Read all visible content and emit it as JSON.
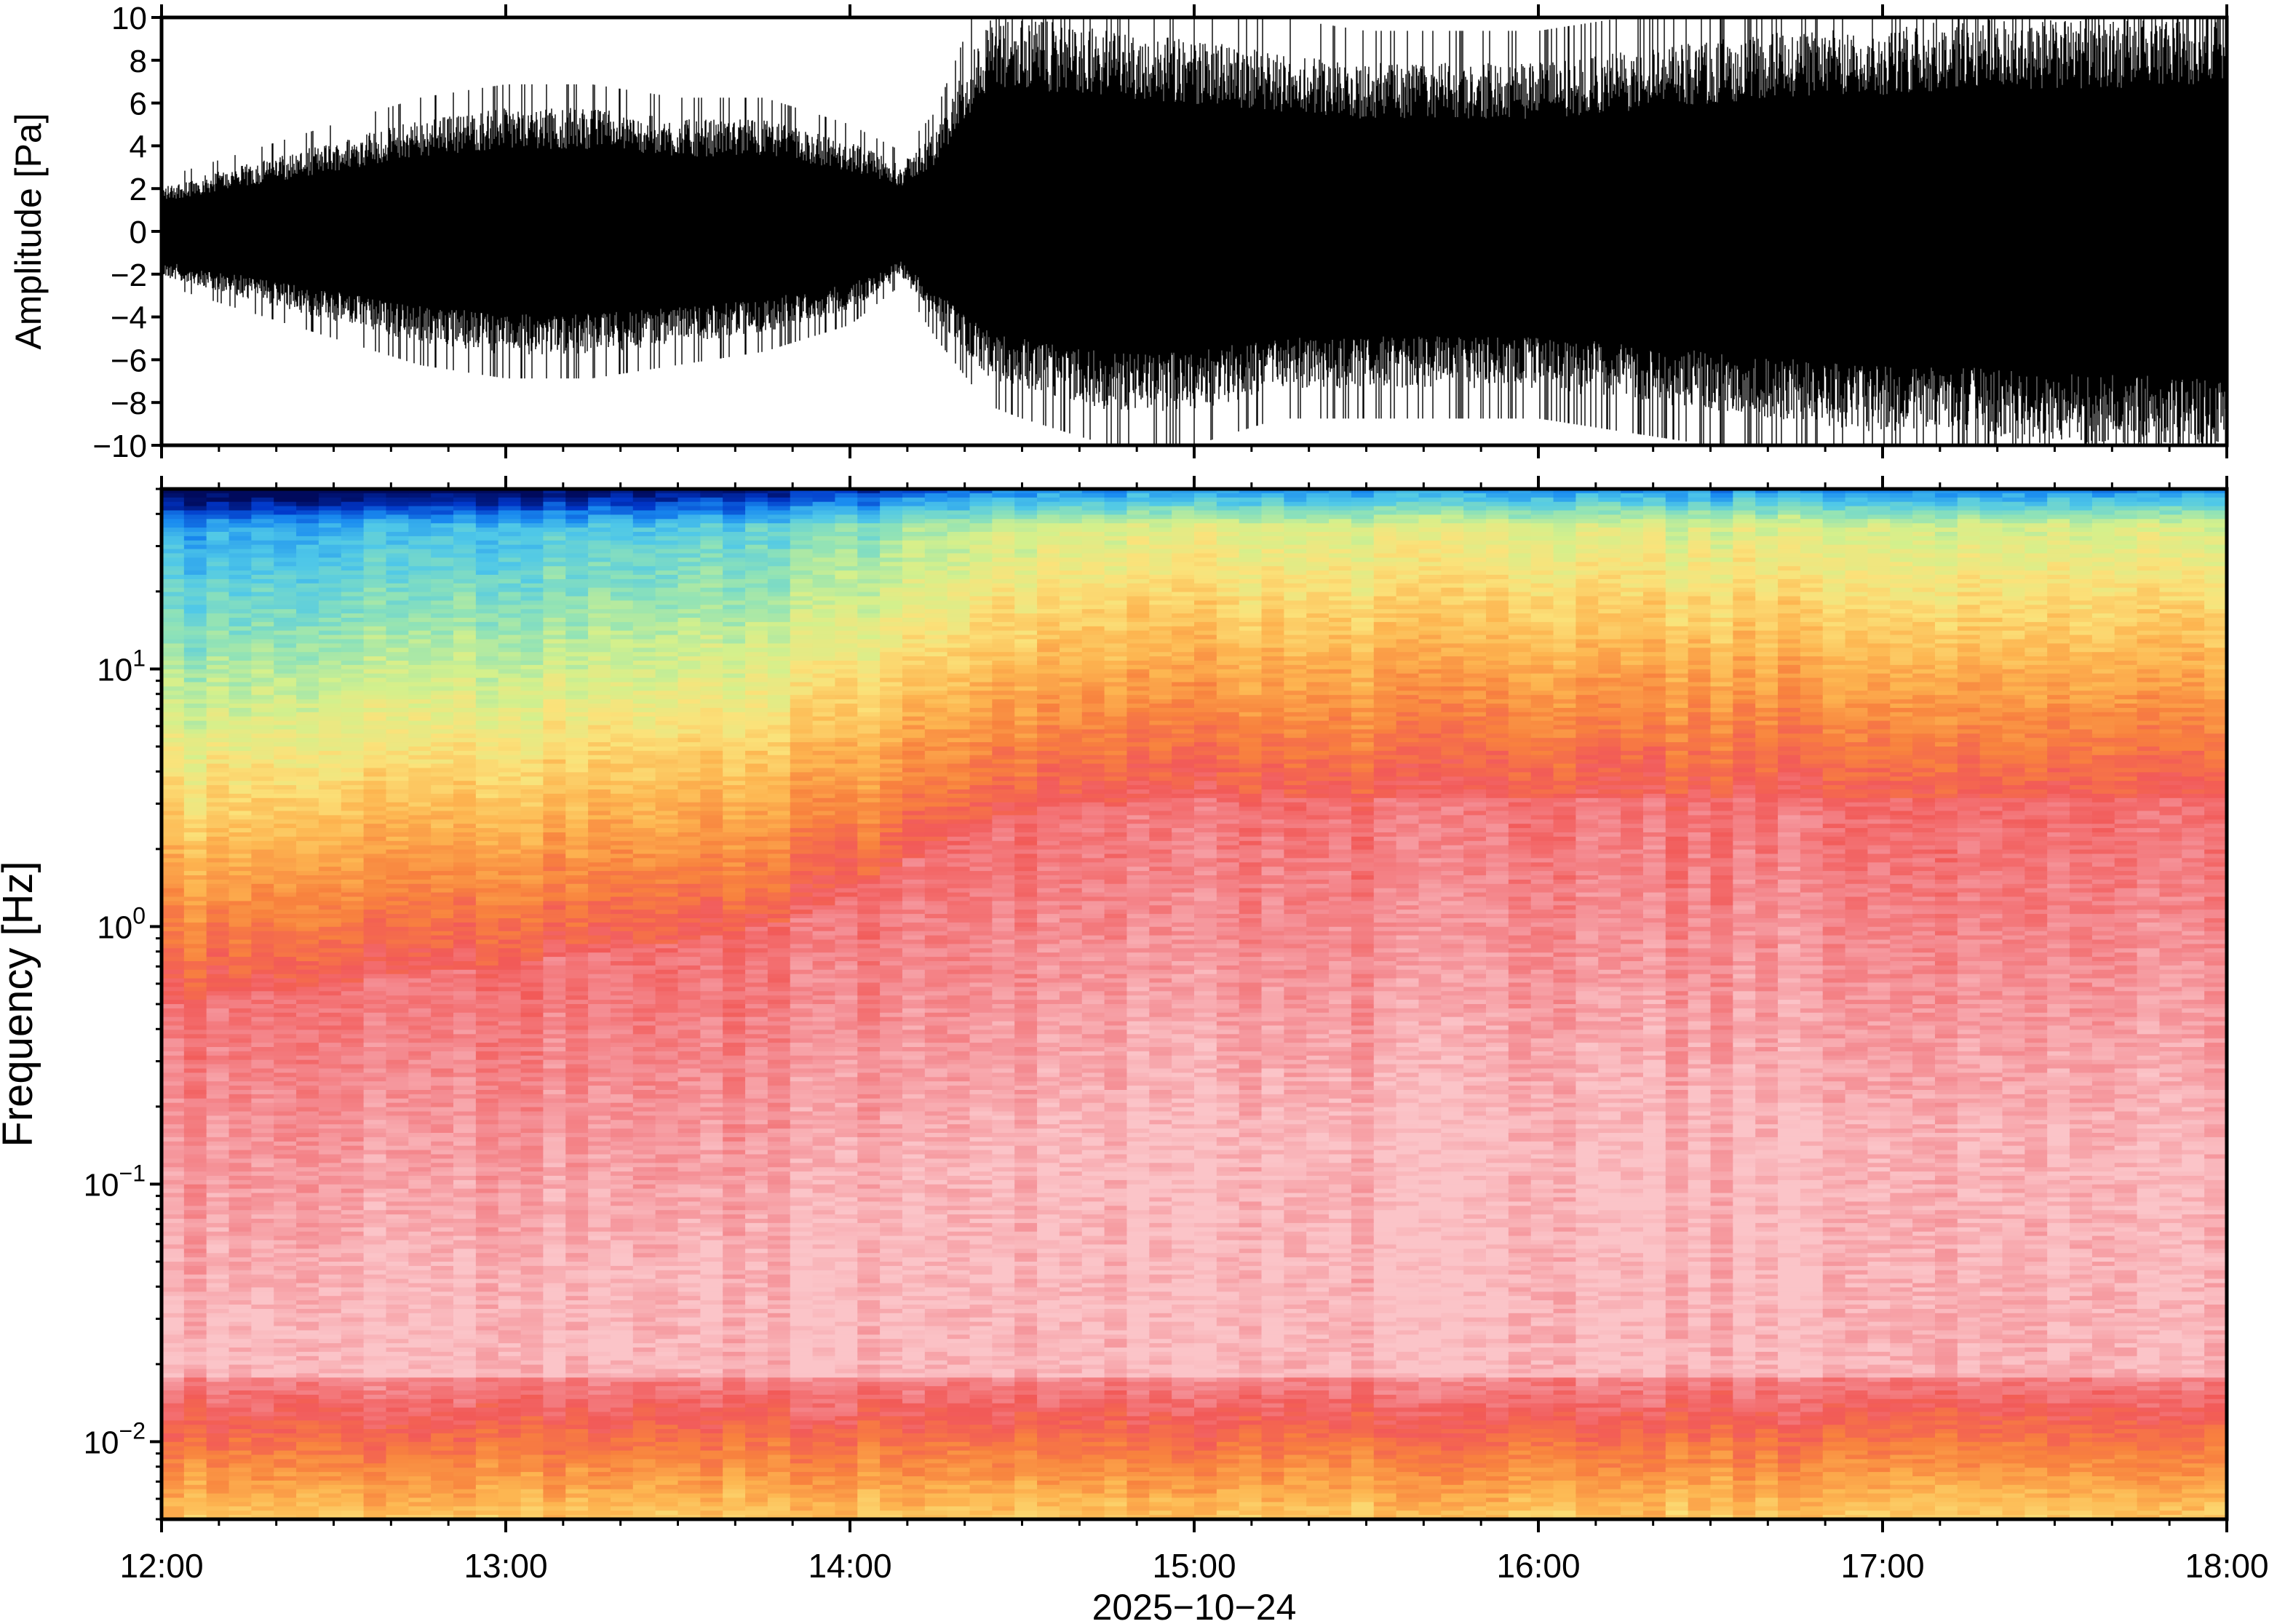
{
  "chart_data": [
    {
      "type": "line",
      "name": "waveform",
      "ylabel": "Amplitude [Pa]",
      "ylim": [
        -10,
        10
      ],
      "yticks": [
        "10",
        "8",
        "6",
        "4",
        "2",
        "0",
        "−2",
        "−4",
        "−6",
        "−8",
        "−10"
      ],
      "ytick_values": [
        10,
        8,
        6,
        4,
        2,
        0,
        -2,
        -4,
        -6,
        -8,
        -10
      ],
      "xlim": [
        "12:00",
        "18:00"
      ],
      "envelope": {
        "time_hours": [
          12.0,
          12.25,
          12.5,
          12.75,
          13.0,
          13.25,
          13.5,
          13.75,
          14.0,
          14.15,
          14.25,
          14.4,
          14.5,
          14.75,
          15.0,
          15.25,
          15.5,
          15.75,
          16.0,
          16.25,
          16.5,
          16.75,
          17.0,
          17.25,
          17.5,
          17.75,
          18.0
        ],
        "upper_pa": [
          2.0,
          3.0,
          4.0,
          5.0,
          5.5,
          5.5,
          5.0,
          5.0,
          4.0,
          3.0,
          4.5,
          9.5,
          9.5,
          9.0,
          8.5,
          8.0,
          7.5,
          7.5,
          7.5,
          8.0,
          8.5,
          9.0,
          9.0,
          9.5,
          9.5,
          9.5,
          10.0
        ],
        "lower_pa": [
          -2.0,
          -3.0,
          -4.0,
          -5.0,
          -5.5,
          -5.5,
          -5.0,
          -4.5,
          -3.5,
          -2.0,
          -4.0,
          -6.5,
          -7.0,
          -8.0,
          -8.0,
          -7.0,
          -7.0,
          -7.0,
          -7.0,
          -7.5,
          -8.0,
          -8.5,
          -9.0,
          -9.0,
          -9.5,
          -9.5,
          -10.0
        ]
      }
    },
    {
      "type": "heatmap",
      "name": "spectrogram",
      "ylabel": "Frequency [Hz]",
      "yscale": "log",
      "ylim": [
        0.005,
        50
      ],
      "yticks": [
        {
          "value": 10,
          "base": "10",
          "exp": "1"
        },
        {
          "value": 1,
          "base": "10",
          "exp": "0"
        },
        {
          "value": 0.1,
          "base": "10",
          "exp": "−1"
        },
        {
          "value": 0.01,
          "base": "10",
          "exp": "−2"
        }
      ],
      "xlabel": "2025−10−24",
      "xticks": [
        "12:00",
        "13:00",
        "14:00",
        "15:00",
        "16:00",
        "17:00",
        "18:00"
      ],
      "xlim": [
        "12:00",
        "18:00"
      ],
      "colormap": "blue-cyan-green-yellow-orange-red-pink (low to high power)",
      "colormap_stops": [
        "#000a5c",
        "#0036c8",
        "#1a8cf0",
        "#4fc8e8",
        "#8ee2b8",
        "#d4f08c",
        "#fbe27a",
        "#fdb550",
        "#f8823e",
        "#f25a58",
        "#f48c92",
        "#fbc4c8"
      ],
      "features": [
        "Spectral maximum near 0.03-0.1 Hz throughout",
        "Power above 1 Hz increases sharply after 14:15",
        "Low-frequency band below 0.015 Hz lower power (yellow/green)"
      ]
    }
  ]
}
